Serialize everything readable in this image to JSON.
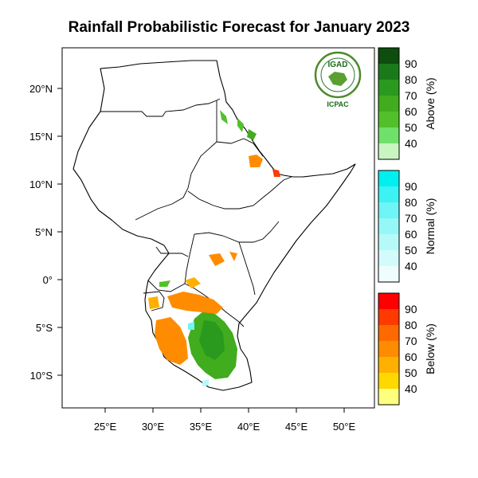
{
  "title": "Rainfall Probabilistic Forecast for January 2023",
  "logo": {
    "text": "IGAD",
    "subtext": "ICPAC"
  },
  "map": {
    "lon_ticks": [
      "25°E",
      "30°E",
      "35°E",
      "40°E",
      "45°E",
      "50°E"
    ],
    "lat_ticks": [
      "20°N",
      "15°N",
      "10°N",
      "5°N",
      "0°",
      "5°S",
      "10°S"
    ]
  },
  "legend": {
    "above": {
      "title": "Above (%)",
      "labels": [
        "90",
        "80",
        "70",
        "60",
        "50",
        "40"
      ],
      "colors": [
        "#0d4d0d",
        "#1a7a1a",
        "#2a9a1e",
        "#40ac1e",
        "#52c02b",
        "#6fe06a",
        "#c8f5c0"
      ]
    },
    "normal": {
      "title": "Normal (%)",
      "labels": [
        "90",
        "80",
        "70",
        "60",
        "50",
        "40"
      ],
      "colors": [
        "#00f0f0",
        "#3cf2f2",
        "#6ef5f5",
        "#96f7f7",
        "#b6f9f9",
        "#d3fbfb",
        "#eefefe"
      ]
    },
    "below": {
      "title": "Below (%)",
      "labels": [
        "90",
        "80",
        "70",
        "60",
        "50",
        "40"
      ],
      "colors": [
        "#ff0000",
        "#ff3a00",
        "#ff6a00",
        "#ff8c00",
        "#ffb000",
        "#ffd800",
        "#ffff80"
      ]
    }
  }
}
